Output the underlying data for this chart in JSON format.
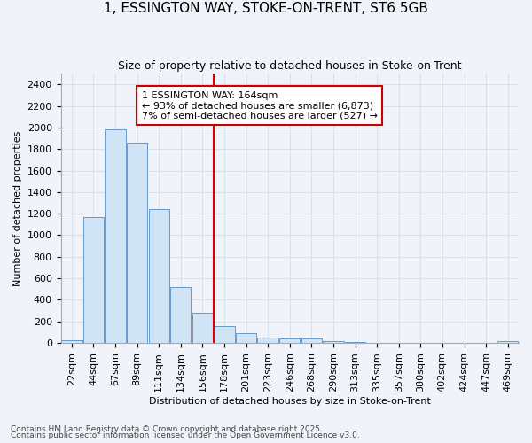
{
  "title1": "1, ESSINGTON WAY, STOKE-ON-TRENT, ST6 5GB",
  "title2": "Size of property relative to detached houses in Stoke-on-Trent",
  "xlabel": "Distribution of detached houses by size in Stoke-on-Trent",
  "ylabel": "Number of detached properties",
  "categories": [
    "22sqm",
    "44sqm",
    "67sqm",
    "89sqm",
    "111sqm",
    "134sqm",
    "156sqm",
    "178sqm",
    "201sqm",
    "223sqm",
    "246sqm",
    "268sqm",
    "290sqm",
    "313sqm",
    "335sqm",
    "357sqm",
    "380sqm",
    "402sqm",
    "424sqm",
    "447sqm",
    "469sqm"
  ],
  "values": [
    25,
    1170,
    1980,
    1860,
    1245,
    520,
    280,
    155,
    92,
    48,
    45,
    38,
    18,
    10,
    4,
    4,
    3,
    3,
    3,
    3,
    15
  ],
  "bar_color": "#d0e4f5",
  "bar_edge_color": "#6699cc",
  "vline_color": "#dd0000",
  "annotation_title": "1 ESSINGTON WAY: 164sqm",
  "annotation_line1": "← 93% of detached houses are smaller (6,873)",
  "annotation_line2": "7% of semi-detached houses are larger (527) →",
  "annotation_box_color": "#ffffff",
  "annotation_border_color": "#cc0000",
  "ylim": [
    0,
    2500
  ],
  "yticks": [
    0,
    200,
    400,
    600,
    800,
    1000,
    1200,
    1400,
    1600,
    1800,
    2000,
    2200,
    2400
  ],
  "footer1": "Contains HM Land Registry data © Crown copyright and database right 2025.",
  "footer2": "Contains public sector information licensed under the Open Government Licence v3.0.",
  "bg_color": "#f0f4fa",
  "grid_color": "#d8e0ec",
  "title1_fontsize": 11,
  "title2_fontsize": 9,
  "axis_fontsize": 8,
  "tick_fontsize": 8,
  "footer_fontsize": 6.5
}
